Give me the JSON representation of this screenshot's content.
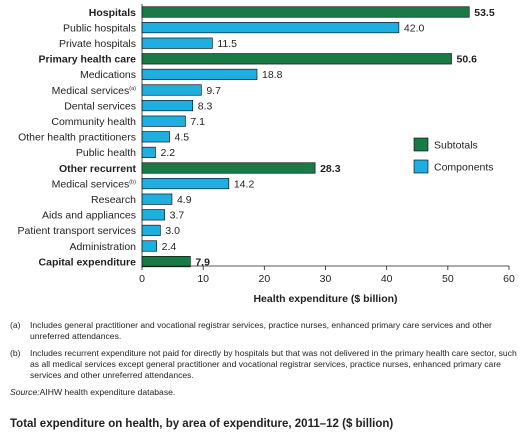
{
  "chart_data": {
    "type": "bar",
    "orientation": "horizontal",
    "categories": [
      {
        "label": "Hospitals",
        "value": 53.5,
        "value_label": "53.5",
        "kind": "Subtotals",
        "bold": true
      },
      {
        "label": "Public hospitals",
        "value": 42.0,
        "value_label": "42.0",
        "kind": "Components",
        "bold": false
      },
      {
        "label": "Private hospitals",
        "value": 11.5,
        "value_label": "11.5",
        "kind": "Components",
        "bold": false
      },
      {
        "label": "Primary health care",
        "value": 50.6,
        "value_label": "50.6",
        "kind": "Subtotals",
        "bold": true
      },
      {
        "label": "Medications",
        "value": 18.8,
        "value_label": "18.8",
        "kind": "Components",
        "bold": false
      },
      {
        "label": "Medical services",
        "sup": "(a)",
        "value": 9.7,
        "value_label": "9.7",
        "kind": "Components",
        "bold": false
      },
      {
        "label": "Dental services",
        "value": 8.3,
        "value_label": "8.3",
        "kind": "Components",
        "bold": false
      },
      {
        "label": "Community health",
        "value": 7.1,
        "value_label": "7.1",
        "kind": "Components",
        "bold": false
      },
      {
        "label": "Other health practitioners",
        "value": 4.5,
        "value_label": "4.5",
        "kind": "Components",
        "bold": false
      },
      {
        "label": "Public health",
        "value": 2.2,
        "value_label": "2.2",
        "kind": "Components",
        "bold": false
      },
      {
        "label": "Other recurrent",
        "value": 28.3,
        "value_label": "28.3",
        "kind": "Subtotals",
        "bold": true
      },
      {
        "label": "Medical services",
        "sup": "(b)",
        "value": 14.2,
        "value_label": "14.2",
        "kind": "Components",
        "bold": false
      },
      {
        "label": "Research",
        "value": 4.9,
        "value_label": "4.9",
        "kind": "Components",
        "bold": false
      },
      {
        "label": "Aids and appliances",
        "value": 3.7,
        "value_label": "3.7",
        "kind": "Components",
        "bold": false
      },
      {
        "label": "Patient transport services",
        "value": 3.0,
        "value_label": "3.0",
        "kind": "Components",
        "bold": false
      },
      {
        "label": "Administration",
        "value": 2.4,
        "value_label": "2.4",
        "kind": "Components",
        "bold": false
      },
      {
        "label": "Capital expenditure",
        "value": 7.9,
        "value_label": "7.9",
        "kind": "Subtotals",
        "bold": true
      }
    ],
    "xlabel": "Health expenditure ($ billion)",
    "ylabel": "",
    "xlim": [
      0,
      60
    ],
    "xticks": [
      "0",
      "10",
      "20",
      "30",
      "40",
      "50",
      "60"
    ],
    "grid": false,
    "legend_position": "right",
    "legend": [
      {
        "label": "Subtotals",
        "color": "#1a7a45"
      },
      {
        "label": "Components",
        "color": "#1eaee0"
      }
    ]
  },
  "colors": {
    "subtotal_fill": "#1a7a45",
    "component_fill": "#1eaee0",
    "bar_stroke": "#000000",
    "axis": "#231f20"
  },
  "notes": [
    {
      "marker": "(a)",
      "text": "Includes general practitioner and vocational registrar services, practice nurses, enhanced primary care services and other unreferred attendances."
    },
    {
      "marker": "(b)",
      "text": "Includes recurrent expenditure not paid for directly by hospitals but that was not delivered in the primary health care sector, such as all medical services except general practitioner and vocational registrar services, practice nurses, enhanced primary care services and other unreferred attendances."
    }
  ],
  "source": {
    "label": "Source:",
    "text": " AIHW health expenditure database."
  },
  "caption": "Total expenditure on health, by area of expenditure, 2011–12 ($ billion)"
}
